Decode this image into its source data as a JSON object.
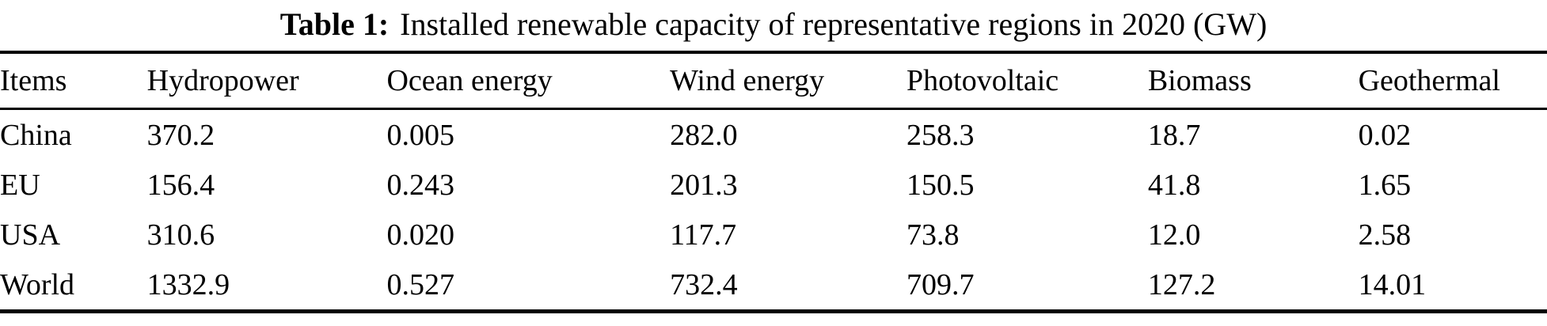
{
  "caption": {
    "label": "Table 1:",
    "text": "Installed renewable capacity of representative regions in 2020 (GW)"
  },
  "table": {
    "unit": "GW",
    "headers": [
      "Items",
      "Hydropower",
      "Ocean energy",
      "Wind energy",
      "Photovoltaic",
      "Biomass",
      "Geothermal"
    ],
    "rows": [
      {
        "cells": [
          "China",
          "370.2",
          "0.005",
          "282.0",
          "258.3",
          "18.7",
          "0.02"
        ]
      },
      {
        "cells": [
          "EU",
          "156.4",
          "0.243",
          "201.3",
          "150.5",
          "41.8",
          "1.65"
        ]
      },
      {
        "cells": [
          "USA",
          "310.6",
          "0.020",
          "117.7",
          "73.8",
          "12.0",
          "2.58"
        ]
      },
      {
        "cells": [
          "World",
          "1332.9",
          "0.527",
          "732.4",
          "709.7",
          "127.2",
          "14.01"
        ]
      }
    ]
  }
}
